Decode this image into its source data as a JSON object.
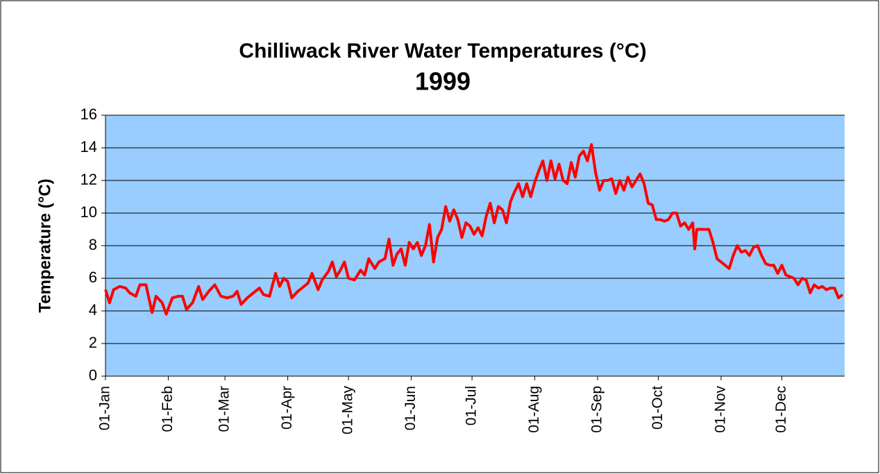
{
  "chart_data": {
    "type": "line",
    "title": "Chilliwack River Water Temperatures (°C)",
    "subtitle": "1999",
    "y_label": "Temperature (°C)",
    "xlim": [
      0,
      365
    ],
    "xticks": [
      {
        "value": 0,
        "label": "01-Jan"
      },
      {
        "value": 31,
        "label": "01-Feb"
      },
      {
        "value": 59,
        "label": "01-Mar"
      },
      {
        "value": 90,
        "label": "01-Apr"
      },
      {
        "value": 120,
        "label": "01-May"
      },
      {
        "value": 151,
        "label": "01-Jun"
      },
      {
        "value": 181,
        "label": "01-Jul"
      },
      {
        "value": 212,
        "label": "01-Aug"
      },
      {
        "value": 243,
        "label": "01-Sep"
      },
      {
        "value": 273,
        "label": "01-Oct"
      },
      {
        "value": 304,
        "label": "01-Nov"
      },
      {
        "value": 334,
        "label": "01-Dec"
      }
    ],
    "ylim": [
      0,
      16
    ],
    "yticks": [
      0,
      2,
      4,
      6,
      8,
      10,
      12,
      14,
      16
    ],
    "grid": true,
    "background": "#99ccff",
    "series": [
      {
        "name": "Temperature",
        "color": "#ff0000",
        "x": [
          0,
          2,
          4,
          7,
          10,
          12,
          15,
          17,
          20,
          23,
          25,
          28,
          30,
          33,
          36,
          38,
          40,
          43,
          46,
          48,
          51,
          54,
          57,
          60,
          63,
          65,
          67,
          70,
          73,
          76,
          78,
          81,
          84,
          86,
          88,
          90,
          92,
          95,
          98,
          100,
          102,
          105,
          107,
          110,
          112,
          114,
          116,
          118,
          120,
          123,
          126,
          128,
          130,
          133,
          135,
          138,
          140,
          142,
          144,
          146,
          148,
          150,
          152,
          154,
          156,
          158,
          160,
          162,
          164,
          166,
          168,
          170,
          172,
          174,
          176,
          178,
          180,
          182,
          184,
          186,
          188,
          190,
          192,
          194,
          196,
          198,
          200,
          202,
          204,
          206,
          208,
          210,
          212,
          214,
          216,
          218,
          220,
          222,
          224,
          226,
          228,
          230,
          232,
          234,
          236,
          238,
          240,
          242,
          244,
          246,
          248,
          250,
          252,
          254,
          256,
          258,
          260,
          262,
          264,
          266,
          268,
          270,
          272,
          274,
          276,
          278,
          280,
          282,
          284,
          286,
          288,
          290,
          291,
          292,
          295,
          298,
          300,
          302,
          304,
          306,
          308,
          310,
          312,
          314,
          316,
          318,
          320,
          322,
          324,
          326,
          328,
          330,
          332,
          334,
          336,
          338,
          340,
          342,
          344,
          346,
          348,
          350,
          352,
          354,
          356,
          358,
          360,
          362,
          364
        ],
        "values": [
          5.3,
          4.5,
          5.3,
          5.5,
          5.4,
          5.1,
          4.9,
          5.6,
          5.6,
          3.9,
          4.9,
          4.5,
          3.8,
          4.8,
          4.9,
          4.9,
          4.1,
          4.5,
          5.5,
          4.7,
          5.2,
          5.6,
          4.9,
          4.8,
          4.9,
          5.2,
          4.4,
          4.8,
          5.1,
          5.4,
          5.0,
          4.9,
          6.3,
          5.5,
          6.0,
          5.8,
          4.8,
          5.2,
          5.5,
          5.7,
          6.3,
          5.3,
          5.9,
          6.4,
          7.0,
          6.1,
          6.5,
          7.0,
          6.0,
          5.9,
          6.5,
          6.2,
          7.2,
          6.6,
          7.0,
          7.2,
          8.4,
          6.8,
          7.5,
          7.8,
          6.8,
          8.2,
          7.8,
          8.2,
          7.4,
          8.0,
          9.3,
          7.0,
          8.5,
          9.0,
          10.4,
          9.5,
          10.2,
          9.6,
          8.5,
          9.4,
          9.2,
          8.7,
          9.1,
          8.6,
          9.8,
          10.6,
          9.4,
          10.4,
          10.2,
          9.4,
          10.7,
          11.3,
          11.8,
          11.0,
          11.8,
          11.0,
          11.9,
          12.6,
          13.2,
          12.0,
          13.2,
          12.1,
          13.0,
          12.0,
          11.8,
          13.1,
          12.2,
          13.5,
          13.8,
          13.2,
          14.2,
          12.5,
          11.4,
          12.0,
          12.0,
          12.1,
          11.2,
          12.0,
          11.4,
          12.2,
          11.6,
          12.0,
          12.4,
          11.8,
          10.6,
          10.5,
          9.6,
          9.6,
          9.5,
          9.6,
          10.0,
          10.0,
          9.2,
          9.4,
          9.0,
          9.4,
          7.8,
          9.0,
          9.0,
          9.0,
          8.2,
          7.2,
          7.0,
          6.8,
          6.6,
          7.4,
          8.0,
          7.6,
          7.7,
          7.4,
          7.9,
          8.0,
          7.4,
          6.9,
          6.8,
          6.8,
          6.3,
          6.8,
          6.2,
          6.1,
          6.0,
          5.6,
          6.0,
          5.9,
          5.1,
          5.6,
          5.4,
          5.5,
          5.3,
          5.4,
          5.4,
          4.8,
          5.0
        ]
      }
    ]
  }
}
